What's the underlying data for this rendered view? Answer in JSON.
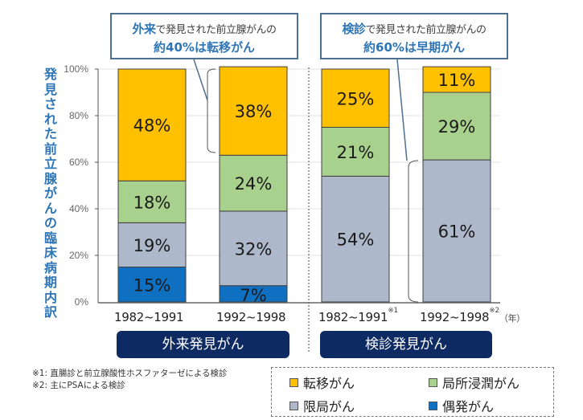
{
  "chart_data": {
    "type": "bar",
    "stacked": true,
    "title": "",
    "ylabel": "発見された前立腺がんの臨床病期内訳",
    "xlabel": "",
    "ylim": [
      0,
      100
    ],
    "yticks": [
      "0%",
      "20%",
      "40%",
      "60%",
      "80%",
      "100%"
    ],
    "grid": true,
    "categories": [
      "1982~1991",
      "1992~1998",
      "1982~1991",
      "1992~1998"
    ],
    "category_notes": [
      "",
      "",
      "※1",
      "※2"
    ],
    "x_unit": "（年）",
    "groups": [
      {
        "label": "外来発見がん",
        "categories": [
          0,
          1
        ]
      },
      {
        "label": "検診発見がん",
        "categories": [
          2,
          3
        ]
      }
    ],
    "series": [
      {
        "name": "偶発がん",
        "color": "#0f6fc0",
        "values": [
          15,
          7,
          0,
          0
        ],
        "labels": [
          "15%",
          "7%",
          "",
          ""
        ]
      },
      {
        "name": "限局がん",
        "color": "#adb9ca",
        "values": [
          19,
          32,
          54,
          61
        ],
        "labels": [
          "19%",
          "32%",
          "54%",
          "61%"
        ]
      },
      {
        "name": "局所浸潤がん",
        "color": "#a9d18e",
        "values": [
          18,
          24,
          21,
          29
        ],
        "labels": [
          "18%",
          "24%",
          "21%",
          "29%"
        ]
      },
      {
        "name": "転移がん",
        "color": "#ffc000",
        "values": [
          48,
          38,
          25,
          11
        ],
        "labels": [
          "48%",
          "38%",
          "25%",
          "11%"
        ]
      }
    ],
    "legend_position": "bottom-right",
    "annotations": [
      {
        "text_emph": "外来",
        "text_rest": "で発見された前立腺がんの",
        "line2": "約40%は転移がん",
        "points_to": "category 1 転移がん"
      },
      {
        "text_emph": "検診",
        "text_rest": "で発見された前立腺がんの",
        "line2": "約60%は早期がん",
        "points_to": "category 3 限局がん"
      }
    ]
  },
  "ylabel_chars": [
    "発",
    "見",
    "さ",
    "れ",
    "た",
    "前",
    "立",
    "腺",
    "が",
    "ん",
    "の",
    "臨",
    "床",
    "病",
    "期",
    "内",
    "訳"
  ],
  "callouts": [
    {
      "emph": "外来",
      "rest": "で発見された前立腺がんの",
      "line2": "約40%は転移がん"
    },
    {
      "emph": "検診",
      "rest": "で発見された前立腺がんの",
      "line2": "約60%は早期がん"
    }
  ],
  "years": [
    {
      "label": "1982~1991",
      "note": ""
    },
    {
      "label": "1992~1998",
      "note": ""
    },
    {
      "label": "1982~1991",
      "note": "※1"
    },
    {
      "label": "1992~1998",
      "note": "※2"
    }
  ],
  "year_unit": "（年）",
  "groups": [
    "外来発見がん",
    "検診発見がん"
  ],
  "notes": [
    "※1: 直腸診と前立腺酸性ホスファターゼによる検診",
    "※2: 主にPSAによる検診"
  ],
  "legend": [
    {
      "label": "転移がん",
      "color": "#ffc000"
    },
    {
      "label": "局所浸潤がん",
      "color": "#a9d18e"
    },
    {
      "label": "限局がん",
      "color": "#adb9ca"
    },
    {
      "label": "偶発がん",
      "color": "#0f6fc0"
    }
  ]
}
